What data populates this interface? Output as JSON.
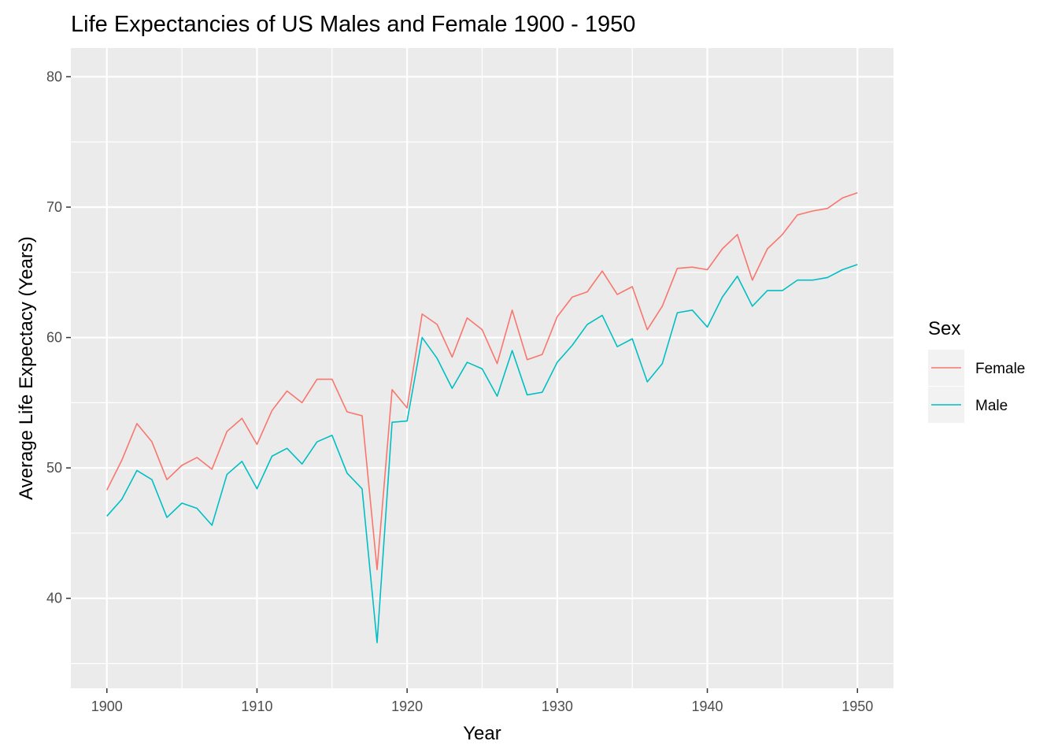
{
  "chart_data": {
    "type": "line",
    "title": "Life Expectancies of US Males and Female 1900 - 1950",
    "xlabel": "Year",
    "ylabel": "Average Life Expectacy (Years)",
    "xlim": [
      1897.6,
      1952.4
    ],
    "ylim": [
      33.1,
      82.2
    ],
    "x_ticks": [
      1900,
      1910,
      1920,
      1930,
      1940,
      1950
    ],
    "y_ticks": [
      40,
      50,
      60,
      70,
      80
    ],
    "grid": true,
    "legend": {
      "title": "Sex",
      "position": "right"
    },
    "x": [
      1900,
      1901,
      1902,
      1903,
      1904,
      1905,
      1906,
      1907,
      1908,
      1909,
      1910,
      1911,
      1912,
      1913,
      1914,
      1915,
      1916,
      1917,
      1918,
      1919,
      1920,
      1921,
      1922,
      1923,
      1924,
      1925,
      1926,
      1927,
      1928,
      1929,
      1930,
      1931,
      1932,
      1933,
      1934,
      1935,
      1936,
      1937,
      1938,
      1939,
      1940,
      1941,
      1942,
      1943,
      1944,
      1945,
      1946,
      1947,
      1948,
      1949,
      1950
    ],
    "series": [
      {
        "name": "Female",
        "color": "#f8766d",
        "values": [
          48.3,
          50.6,
          53.4,
          52.0,
          49.1,
          50.2,
          50.8,
          49.9,
          52.8,
          53.8,
          51.8,
          54.4,
          55.9,
          55.0,
          56.8,
          56.8,
          54.3,
          54.0,
          42.2,
          56.0,
          54.6,
          61.8,
          61.0,
          58.5,
          61.5,
          60.6,
          58.0,
          62.1,
          58.3,
          58.7,
          61.6,
          63.1,
          63.5,
          65.1,
          63.3,
          63.9,
          60.6,
          62.4,
          65.3,
          65.4,
          65.2,
          66.8,
          67.9,
          64.4,
          66.8,
          67.9,
          69.4,
          69.7,
          69.9,
          70.7,
          71.1
        ]
      },
      {
        "name": "Male",
        "color": "#00bfc4",
        "values": [
          46.3,
          47.6,
          49.8,
          49.1,
          46.2,
          47.3,
          46.9,
          45.6,
          49.5,
          50.5,
          48.4,
          50.9,
          51.5,
          50.3,
          52.0,
          52.5,
          49.6,
          48.4,
          36.6,
          53.5,
          53.6,
          60.0,
          58.4,
          56.1,
          58.1,
          57.6,
          55.5,
          59.0,
          55.6,
          55.8,
          58.1,
          59.4,
          61.0,
          61.7,
          59.3,
          59.9,
          56.6,
          58.0,
          61.9,
          62.1,
          60.8,
          63.1,
          64.7,
          62.4,
          63.6,
          63.6,
          64.4,
          64.4,
          64.6,
          65.2,
          65.6
        ]
      }
    ]
  }
}
